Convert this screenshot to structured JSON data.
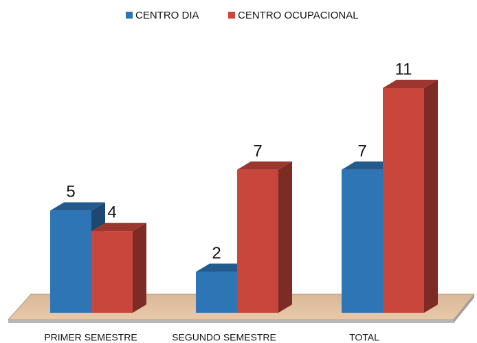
{
  "chart_data": {
    "type": "bar3d",
    "categories": [
      "PRIMER SEMESTRE",
      "SEGUNDO SEMESTRE",
      "TOTAL"
    ],
    "series": [
      {
        "name": "CENTRO DIA",
        "color": "#2e75b6",
        "values": [
          5,
          2,
          7
        ]
      },
      {
        "name": "CENTRO OCUPACIONAL",
        "color": "#c8463c",
        "values": [
          4,
          7,
          11
        ]
      }
    ],
    "legend": "top"
  }
}
